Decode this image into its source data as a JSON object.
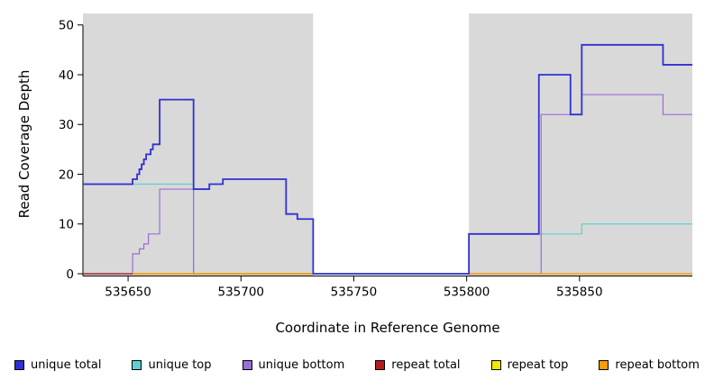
{
  "chart_data": {
    "type": "line",
    "step": true,
    "title": "",
    "xlabel": "Coordinate in Reference Genome",
    "ylabel": "Read Coverage Depth",
    "xlim": [
      535630,
      535900
    ],
    "ylim": [
      0,
      50
    ],
    "xticks": [
      535650,
      535700,
      535750,
      535800,
      535850
    ],
    "yticks": [
      0,
      10,
      20,
      30,
      40,
      50
    ],
    "grid": false,
    "legend_position": "bottom",
    "background_color": "#ffffff",
    "band_color": "#d9d9d9",
    "background_bands": [
      {
        "x0": 535630,
        "x1": 535732
      },
      {
        "x0": 535801,
        "x1": 535900
      }
    ],
    "series": [
      {
        "id": "unique-top",
        "name": "unique top",
        "color": "#5fd0d0",
        "width": 1.2,
        "segments": [
          [
            [
              535630,
              18
            ],
            [
              535679,
              0
            ],
            [
              535801,
              8
            ],
            [
              535851,
              10
            ],
            [
              535900,
              10
            ]
          ]
        ]
      },
      {
        "id": "unique-bottom",
        "name": "unique bottom",
        "color": "#9a6dd8",
        "width": 1.2,
        "segments": [
          [
            [
              535630,
              0
            ],
            [
              535652,
              4
            ],
            [
              535655,
              5
            ],
            [
              535657,
              6
            ],
            [
              535659,
              8
            ],
            [
              535664,
              17
            ],
            [
              535679,
              0
            ],
            [
              535833,
              32
            ],
            [
              535851,
              36
            ],
            [
              535887,
              32
            ],
            [
              535900,
              32
            ]
          ]
        ]
      },
      {
        "id": "repeat-total",
        "name": "repeat total",
        "color": "#a01010",
        "width": 1.2,
        "segments": [
          [
            [
              535630,
              0
            ],
            [
              535732,
              0
            ]
          ]
        ]
      },
      {
        "id": "repeat-top",
        "name": "repeat top",
        "color": "#f0e800",
        "width": 1.2,
        "segments": [
          [
            [
              535652,
              0
            ],
            [
              535732,
              0
            ]
          ]
        ]
      },
      {
        "id": "repeat-bottom",
        "name": "repeat bottom",
        "color": "#ff9d00",
        "width": 1.4,
        "segments": [
          [
            [
              535652,
              0
            ],
            [
              535732,
              0
            ]
          ],
          [
            [
              535801,
              0
            ],
            [
              535900,
              0
            ]
          ]
        ]
      },
      {
        "id": "unique-total",
        "name": "unique total",
        "color": "#3030d5",
        "width": 1.8,
        "segments": [
          [
            [
              535630,
              18
            ],
            [
              535652,
              19
            ],
            [
              535654,
              20
            ],
            [
              535655,
              21
            ],
            [
              535656,
              22
            ],
            [
              535657,
              23
            ],
            [
              535658,
              24
            ],
            [
              535660,
              25
            ],
            [
              535661,
              26
            ],
            [
              535664,
              35
            ],
            [
              535679,
              17
            ],
            [
              535686,
              18
            ],
            [
              535692,
              19
            ],
            [
              535720,
              12
            ],
            [
              535725,
              11
            ],
            [
              535732,
              0
            ],
            [
              535801,
              8
            ],
            [
              535832,
              40
            ],
            [
              535846,
              32
            ],
            [
              535851,
              46
            ],
            [
              535887,
              42
            ],
            [
              535900,
              42
            ]
          ]
        ]
      }
    ],
    "legend": [
      {
        "label": "unique total",
        "color": "#3030d5"
      },
      {
        "label": "unique top",
        "color": "#5fd0d0"
      },
      {
        "label": "unique bottom",
        "color": "#9a6dd8"
      },
      {
        "label": "repeat total",
        "color": "#b51d1d"
      },
      {
        "label": "repeat top",
        "color": "#f0e800"
      },
      {
        "label": "repeat bottom",
        "color": "#ff9d00"
      }
    ]
  }
}
